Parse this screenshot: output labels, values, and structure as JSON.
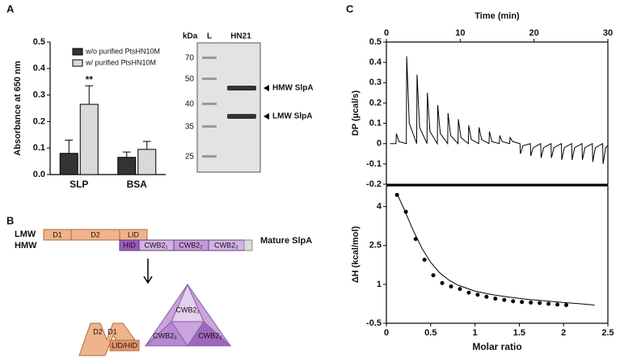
{
  "panels": {
    "a": "A",
    "b": "B",
    "c": "C"
  },
  "chart_data": [
    {
      "type": "bar",
      "ylabel": "Absorbance at 650 nm",
      "categories": [
        "SLP",
        "BSA"
      ],
      "series": [
        {
          "name": "w/o purified PtsHN10M",
          "color": "#333333",
          "values": [
            0.08,
            0.065
          ],
          "errors": [
            0.05,
            0.02
          ]
        },
        {
          "name": "w/ purified PtsHN10M",
          "color": "#d9d9d9",
          "values": [
            0.265,
            0.095
          ],
          "errors": [
            0.07,
            0.03
          ]
        }
      ],
      "ylim": [
        0,
        0.5
      ],
      "yticks": [
        {
          "value": 0,
          "label": "0.0"
        },
        0.1,
        0.2,
        0.3,
        0.4,
        0.5
      ],
      "annotation": "**",
      "legend": "upper center"
    },
    {
      "type": "line",
      "xlabel": "Time (min)",
      "ylabel": "DP (µcal/s)",
      "xaxis": "top",
      "x": [
        0.5,
        1.3,
        1.35,
        1.7,
        2.7,
        2.75,
        3.1,
        4.1,
        4.15,
        4.5,
        5.5,
        5.55,
        5.9,
        6.9,
        6.95,
        7.3,
        8.3,
        8.35,
        8.7,
        9.7,
        9.75,
        10.1,
        11.1,
        11.15,
        11.5,
        12.5,
        12.55,
        12.9,
        13.9,
        13.95,
        14.3,
        15.3,
        15.35,
        15.7,
        16.7,
        16.75,
        17.1,
        18.1,
        18.15,
        18.5,
        19.5,
        19.55,
        19.9,
        20.9,
        20.95,
        21.3,
        22.3,
        22.35,
        22.7,
        23.7,
        23.75,
        24.1,
        25.1,
        25.15,
        25.5,
        26.5,
        26.55,
        26.9,
        27.9,
        27.95,
        28.3,
        29.3,
        29.35,
        29.7,
        30
      ],
      "values": [
        0,
        0,
        0.05,
        0.01,
        0,
        0.43,
        0.1,
        0,
        0.34,
        0.08,
        0,
        0.25,
        0.06,
        0,
        0.19,
        0.05,
        0,
        0.15,
        0.04,
        0,
        0.12,
        0.03,
        0,
        0.09,
        0.02,
        0,
        0.08,
        0.02,
        0,
        0.06,
        0.01,
        0,
        0.04,
        0.01,
        0,
        0.03,
        0.01,
        0,
        -0.05,
        -0.01,
        0,
        -0.06,
        -0.02,
        0,
        -0.07,
        -0.02,
        0,
        -0.07,
        -0.02,
        0,
        -0.08,
        -0.02,
        0,
        -0.08,
        -0.02,
        0,
        -0.08,
        -0.02,
        0,
        -0.09,
        -0.02,
        0,
        -0.1,
        -0.02,
        -0.01
      ],
      "color": "#000000",
      "xlim": [
        0,
        30
      ],
      "xticks": [
        0,
        10,
        20,
        30
      ],
      "ylim": [
        -0.2,
        0.5
      ],
      "yticks": [
        -0.2,
        -0.1,
        0,
        0.1,
        0.2,
        0.3,
        0.4,
        0.5
      ]
    },
    {
      "type": "scatter",
      "xlabel": "Molar ratio",
      "ylabel": "ΔH (kcal/mol)",
      "series": [
        {
          "kind": "points",
          "color": "#000000",
          "x": [
            0.12,
            0.22,
            0.33,
            0.43,
            0.53,
            0.63,
            0.73,
            0.83,
            0.93,
            1.03,
            1.13,
            1.23,
            1.33,
            1.43,
            1.53,
            1.63,
            1.73,
            1.83,
            1.93,
            2.03
          ],
          "values": [
            4.45,
            3.8,
            2.75,
            1.95,
            1.35,
            1.05,
            0.92,
            0.82,
            0.68,
            0.6,
            0.52,
            0.45,
            0.4,
            0.35,
            0.32,
            0.3,
            0.28,
            0.25,
            0.22,
            0.2
          ]
        },
        {
          "kind": "line",
          "color": "#000000",
          "x": [
            0.12,
            0.2,
            0.3,
            0.4,
            0.5,
            0.6,
            0.7,
            0.8,
            1.0,
            1.2,
            1.4,
            1.6,
            1.8,
            2.0,
            2.2,
            2.35
          ],
          "values": [
            4.5,
            3.9,
            3.1,
            2.4,
            1.85,
            1.45,
            1.18,
            0.98,
            0.74,
            0.6,
            0.5,
            0.42,
            0.36,
            0.3,
            0.25,
            0.2
          ]
        }
      ],
      "xlim": [
        0,
        2.5
      ],
      "xticks": [
        0,
        0.5,
        1,
        1.5,
        2,
        2.5
      ],
      "ylim": [
        -0.5,
        4.8
      ],
      "yticks": [
        -0.5,
        1,
        2.5,
        4
      ]
    }
  ],
  "gel": {
    "unit": "kDa",
    "lanes": [
      "L",
      "HN21"
    ],
    "markers": [
      "70",
      "50",
      "40",
      "35",
      "25"
    ],
    "bands": [
      "HMW SlpA",
      "LMW SlpA"
    ]
  },
  "domains": {
    "rows": [
      "LMW",
      "HMW"
    ],
    "d1": "D1",
    "d2": "D2",
    "lid": "LID",
    "hid": "HID",
    "cwb1": "CWB2₁",
    "cwb2": "CWB2₂",
    "cwb3": "CWB2₃",
    "mature": "Mature SlpA",
    "model": {
      "d2": "D2",
      "d1": "D1",
      "lidhid": "LID/HID",
      "cwb1": "CWB2₁",
      "cwb3": "CWB2₃",
      "cwb2": "CWB2₂"
    }
  }
}
